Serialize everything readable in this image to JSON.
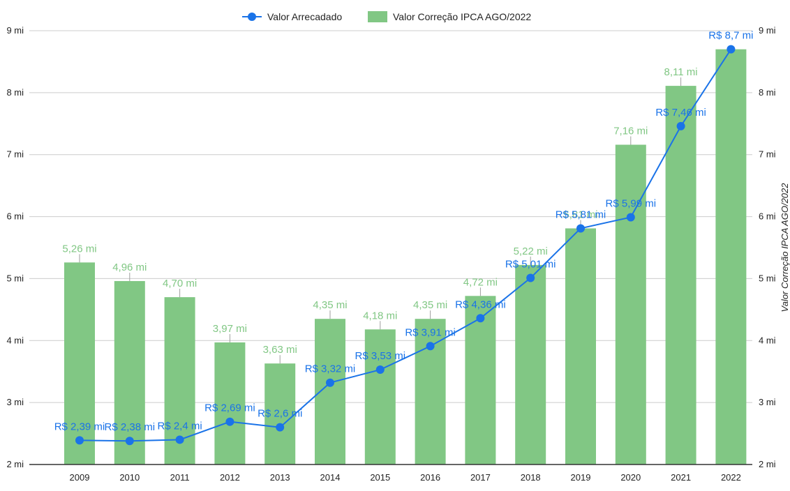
{
  "chart_data": {
    "type": "bar",
    "categories": [
      "2009",
      "2010",
      "2011",
      "2012",
      "2013",
      "2014",
      "2015",
      "2016",
      "2017",
      "2018",
      "2019",
      "2020",
      "2021",
      "2022"
    ],
    "series": [
      {
        "name": "Valor Correção IPCA AGO/2022",
        "type": "bar",
        "values": [
          5.26,
          4.96,
          4.7,
          3.97,
          3.63,
          4.35,
          4.18,
          4.35,
          4.72,
          5.22,
          5.81,
          7.16,
          8.11,
          8.7
        ],
        "labels": [
          "5,26 mi",
          "4,96 mi",
          "4,70 mi",
          "3,97 mi",
          "3,63 mi",
          "4,35 mi",
          "4,18 mi",
          "4,35 mi",
          "4,72 mi",
          "5,22 mi",
          "5,81 mi",
          "7,16 mi",
          "8,11 mi",
          ""
        ]
      },
      {
        "name": "Valor Arrecadado",
        "type": "line",
        "values": [
          2.39,
          2.38,
          2.4,
          2.69,
          2.6,
          3.32,
          3.53,
          3.91,
          4.36,
          5.01,
          5.81,
          5.99,
          7.46,
          8.7
        ],
        "labels": [
          "R$ 2,39 mi",
          "R$ 2,38 mi",
          "R$ 2,4 mi",
          "R$ 2,69 mi",
          "R$ 2,6 mi",
          "R$ 3,32 mi",
          "R$ 3,53 mi",
          "R$ 3,91 mi",
          "R$ 4,36 mi",
          "R$ 5,01 mi",
          "R$ 5,81 mi",
          "R$ 5,99 mi",
          "R$ 7,46 mi",
          "R$ 8,7 mi"
        ]
      }
    ],
    "ylim": [
      2,
      9
    ],
    "y_ticks": [
      "2 mi",
      "3 mi",
      "4 mi",
      "5 mi",
      "6 mi",
      "7 mi",
      "8 mi",
      "9 mi"
    ],
    "y2_ticks": [
      "2 mi",
      "3 mi",
      "4 mi",
      "5 mi",
      "6 mi",
      "7 mi",
      "8 mi",
      "9 mi"
    ],
    "y2label": "Valor Correção IPCA AGO/2022",
    "legend": [
      "Valor Arrecadado",
      "Valor Correção IPCA AGO/2022"
    ],
    "legend_position": "top",
    "grid": true,
    "colors": {
      "bar": "#81c784",
      "line": "#1a73e8",
      "grid": "#cccccc",
      "axis": "#333333"
    }
  }
}
